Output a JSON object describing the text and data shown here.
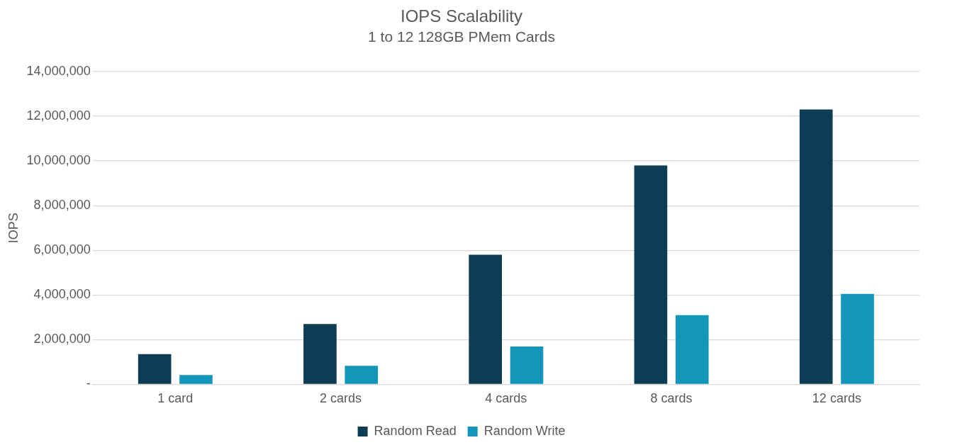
{
  "chart_data": {
    "type": "bar",
    "title": "IOPS Scalability",
    "subtitle": "1 to 12 128GB PMem Cards",
    "ylabel": "IOPS",
    "categories": [
      "1 card",
      "2 cards",
      "4 cards",
      "8 cards",
      "12 cards"
    ],
    "series": [
      {
        "name": "Random Read",
        "color": "#0d3c55",
        "values": [
          1350000,
          2700000,
          5800000,
          9800000,
          12300000
        ]
      },
      {
        "name": "Random Write",
        "color": "#1496bb",
        "values": [
          420000,
          830000,
          1690000,
          3100000,
          4050000
        ]
      }
    ],
    "ylim": [
      0,
      14000000
    ],
    "yticks": [
      {
        "value": 0,
        "label": "-"
      },
      {
        "value": 2000000,
        "label": "2,000,000"
      },
      {
        "value": 4000000,
        "label": "4,000,000"
      },
      {
        "value": 6000000,
        "label": "6,000,000"
      },
      {
        "value": 8000000,
        "label": "8,000,000"
      },
      {
        "value": 10000000,
        "label": "10,000,000"
      },
      {
        "value": 12000000,
        "label": "12,000,000"
      },
      {
        "value": 14000000,
        "label": "14,000,000"
      }
    ],
    "grid": "y",
    "legend": "bottom"
  }
}
